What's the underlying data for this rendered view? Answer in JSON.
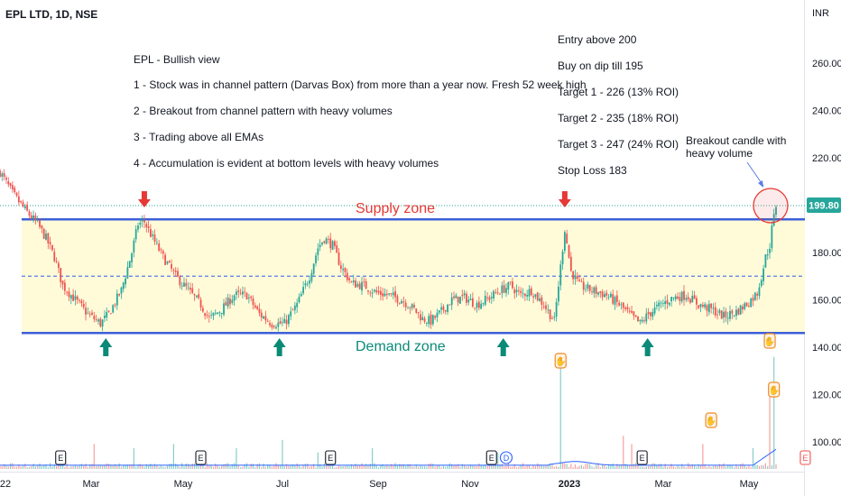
{
  "header": {
    "symbol": "EPL LTD, 1D, NSE",
    "currency": "INR"
  },
  "notes": [
    "EPL - Bullish view",
    "1 - Stock was in channel pattern (Darvas Box) from more than a year now. Fresh 52 week high",
    "2 - Breakout from channel pattern with heavy volumes",
    "3 - Trading above all EMAs",
    "4 - Accumulation is evident at bottom levels with heavy volumes"
  ],
  "trade_plan": [
    "Entry above 200",
    "Buy on dip till 195",
    "Target 1 - 226 (13% ROI)",
    "Target 2 - 235 (18% ROI)",
    "Target 3 - 247 (24% ROI)",
    "Stop Loss 183"
  ],
  "annotations": {
    "supply": "Supply zone",
    "demand": "Demand zone",
    "breakout_line1": "Breakout candle with",
    "breakout_line2": "heavy volume"
  },
  "colors": {
    "up": "#26a69a",
    "down": "#ef5350",
    "zone_fill": "#fffbd9",
    "box_line": "#3d5fd9",
    "midline": "#5b7be6",
    "supply_text": "#e53935",
    "demand_text": "#0b8a78",
    "arrow_up": "#0b8a78",
    "arrow_down": "#e53935",
    "thumb": "#f08a24",
    "price_label_bg": "#26a69a"
  },
  "icons": [
    "arrow-down-icon",
    "arrow-up-icon",
    "thumbs-up-icon",
    "earnings-icon",
    "dividend-icon"
  ],
  "chart_data": {
    "type": "candlestick",
    "title": "EPL LTD, 1D, NSE",
    "y_axis": {
      "unit": "INR",
      "ticks": [
        100,
        120,
        140,
        160,
        180,
        200,
        220,
        240,
        260
      ],
      "ylim": [
        90,
        282
      ]
    },
    "x_axis": {
      "ticks": [
        "22",
        "Mar",
        "May",
        "Jul",
        "Sep",
        "Nov",
        "2023",
        "Mar",
        "May"
      ]
    },
    "last_price": "199.80",
    "supply_level": 194,
    "demand_level": 146,
    "mid_level": 170,
    "price_path": [
      [
        0,
        214
      ],
      [
        6,
        205
      ],
      [
        12,
        198
      ],
      [
        18,
        192
      ],
      [
        22,
        186
      ],
      [
        26,
        178
      ],
      [
        30,
        166
      ],
      [
        36,
        160
      ],
      [
        42,
        154
      ],
      [
        48,
        150
      ],
      [
        52,
        154
      ],
      [
        58,
        164
      ],
      [
        63,
        180
      ],
      [
        66,
        192
      ],
      [
        69,
        193
      ],
      [
        73,
        186
      ],
      [
        78,
        178
      ],
      [
        84,
        170
      ],
      [
        90,
        164
      ],
      [
        96,
        158
      ],
      [
        100,
        152
      ],
      [
        106,
        156
      ],
      [
        112,
        162
      ],
      [
        118,
        162
      ],
      [
        124,
        154
      ],
      [
        130,
        150
      ],
      [
        136,
        150
      ],
      [
        142,
        158
      ],
      [
        148,
        170
      ],
      [
        152,
        182
      ],
      [
        155,
        186
      ],
      [
        159,
        183
      ],
      [
        163,
        174
      ],
      [
        168,
        167
      ],
      [
        174,
        166
      ],
      [
        180,
        163
      ],
      [
        186,
        162
      ],
      [
        192,
        160
      ],
      [
        198,
        156
      ],
      [
        202,
        152
      ],
      [
        206,
        151
      ],
      [
        211,
        155
      ],
      [
        216,
        160
      ],
      [
        222,
        161
      ],
      [
        228,
        158
      ],
      [
        234,
        161
      ],
      [
        239,
        164
      ],
      [
        244,
        166
      ],
      [
        249,
        162
      ],
      [
        254,
        164
      ],
      [
        260,
        158
      ],
      [
        265,
        151
      ],
      [
        268,
        174
      ],
      [
        270,
        190
      ],
      [
        273,
        172
      ],
      [
        277,
        166
      ],
      [
        283,
        164
      ],
      [
        290,
        162
      ],
      [
        296,
        158
      ],
      [
        302,
        153
      ],
      [
        306,
        150
      ],
      [
        310,
        154
      ],
      [
        316,
        158
      ],
      [
        322,
        161
      ],
      [
        328,
        162
      ],
      [
        334,
        158
      ],
      [
        340,
        156
      ],
      [
        346,
        153
      ],
      [
        352,
        155
      ],
      [
        358,
        159
      ],
      [
        362,
        163
      ],
      [
        364,
        170
      ],
      [
        366,
        178
      ],
      [
        368,
        183
      ],
      [
        369,
        190
      ],
      [
        371,
        200
      ]
    ],
    "volume": {
      "base_level": 1.2,
      "spikes": [
        [
          45,
          6
        ],
        [
          64,
          5
        ],
        [
          83,
          6
        ],
        [
          113,
          5
        ],
        [
          135,
          7
        ],
        [
          152,
          4
        ],
        [
          178,
          5
        ],
        [
          238,
          4
        ],
        [
          268,
          28
        ],
        [
          298,
          8
        ],
        [
          302,
          6
        ],
        [
          336,
          6
        ],
        [
          360,
          5
        ],
        [
          368,
          18
        ],
        [
          370,
          27
        ]
      ],
      "moving_average_bump": [
        268,
        3
      ]
    },
    "markers": {
      "supply_touch_x": [
        69,
        270
      ],
      "demand_touch_x": [
        48,
        131,
        238,
        307
      ],
      "thumbs_up_x": [
        268,
        340,
        368,
        370
      ],
      "earnings_x": [
        29,
        96,
        158,
        235,
        307,
        385
      ],
      "dividend_x": [
        242
      ]
    }
  }
}
